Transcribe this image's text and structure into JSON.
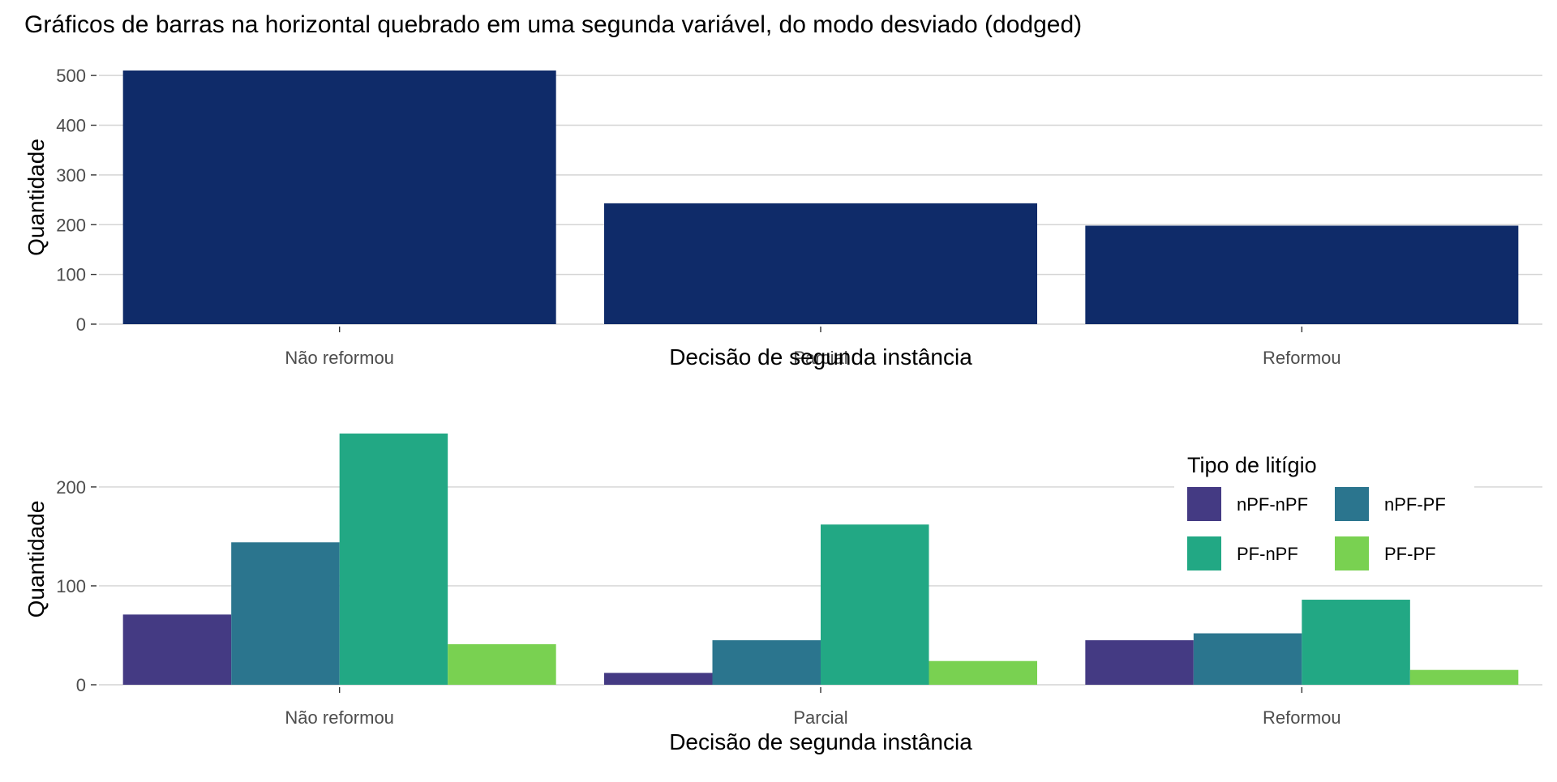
{
  "title": "Gráficos de barras na horizontal quebrado em uma segunda variável, do modo desviado (dodged)",
  "chart_data": [
    {
      "type": "bar",
      "categories": [
        "Não reformou",
        "Parcial",
        "Reformou"
      ],
      "values": [
        510,
        243,
        198
      ],
      "xlabel": "Decisão de segunda instância",
      "ylabel": "Quantidade",
      "ylim": [
        0,
        510
      ],
      "yticks": [
        0,
        100,
        200,
        300,
        400,
        500
      ],
      "grid": true,
      "color": "#0f2b69"
    },
    {
      "type": "bar",
      "mode": "dodged",
      "categories": [
        "Não reformou",
        "Parcial",
        "Reformou"
      ],
      "series": [
        {
          "name": "nPF-nPF",
          "color": "#443a83",
          "values": [
            71,
            12,
            45
          ]
        },
        {
          "name": "nPF-PF",
          "color": "#2b758e",
          "values": [
            144,
            45,
            52
          ]
        },
        {
          "name": "PF-nPF",
          "color": "#22a884",
          "values": [
            254,
            162,
            86
          ]
        },
        {
          "name": "PF-PF",
          "color": "#79d151",
          "values": [
            41,
            24,
            15
          ]
        }
      ],
      "xlabel": "Decisão de segunda instância",
      "ylabel": "Quantidade",
      "ylim": [
        0,
        254
      ],
      "yticks": [
        0,
        100,
        200
      ],
      "grid": true,
      "legend": {
        "title": "Tipo de litígio",
        "position": "top-right"
      }
    }
  ]
}
